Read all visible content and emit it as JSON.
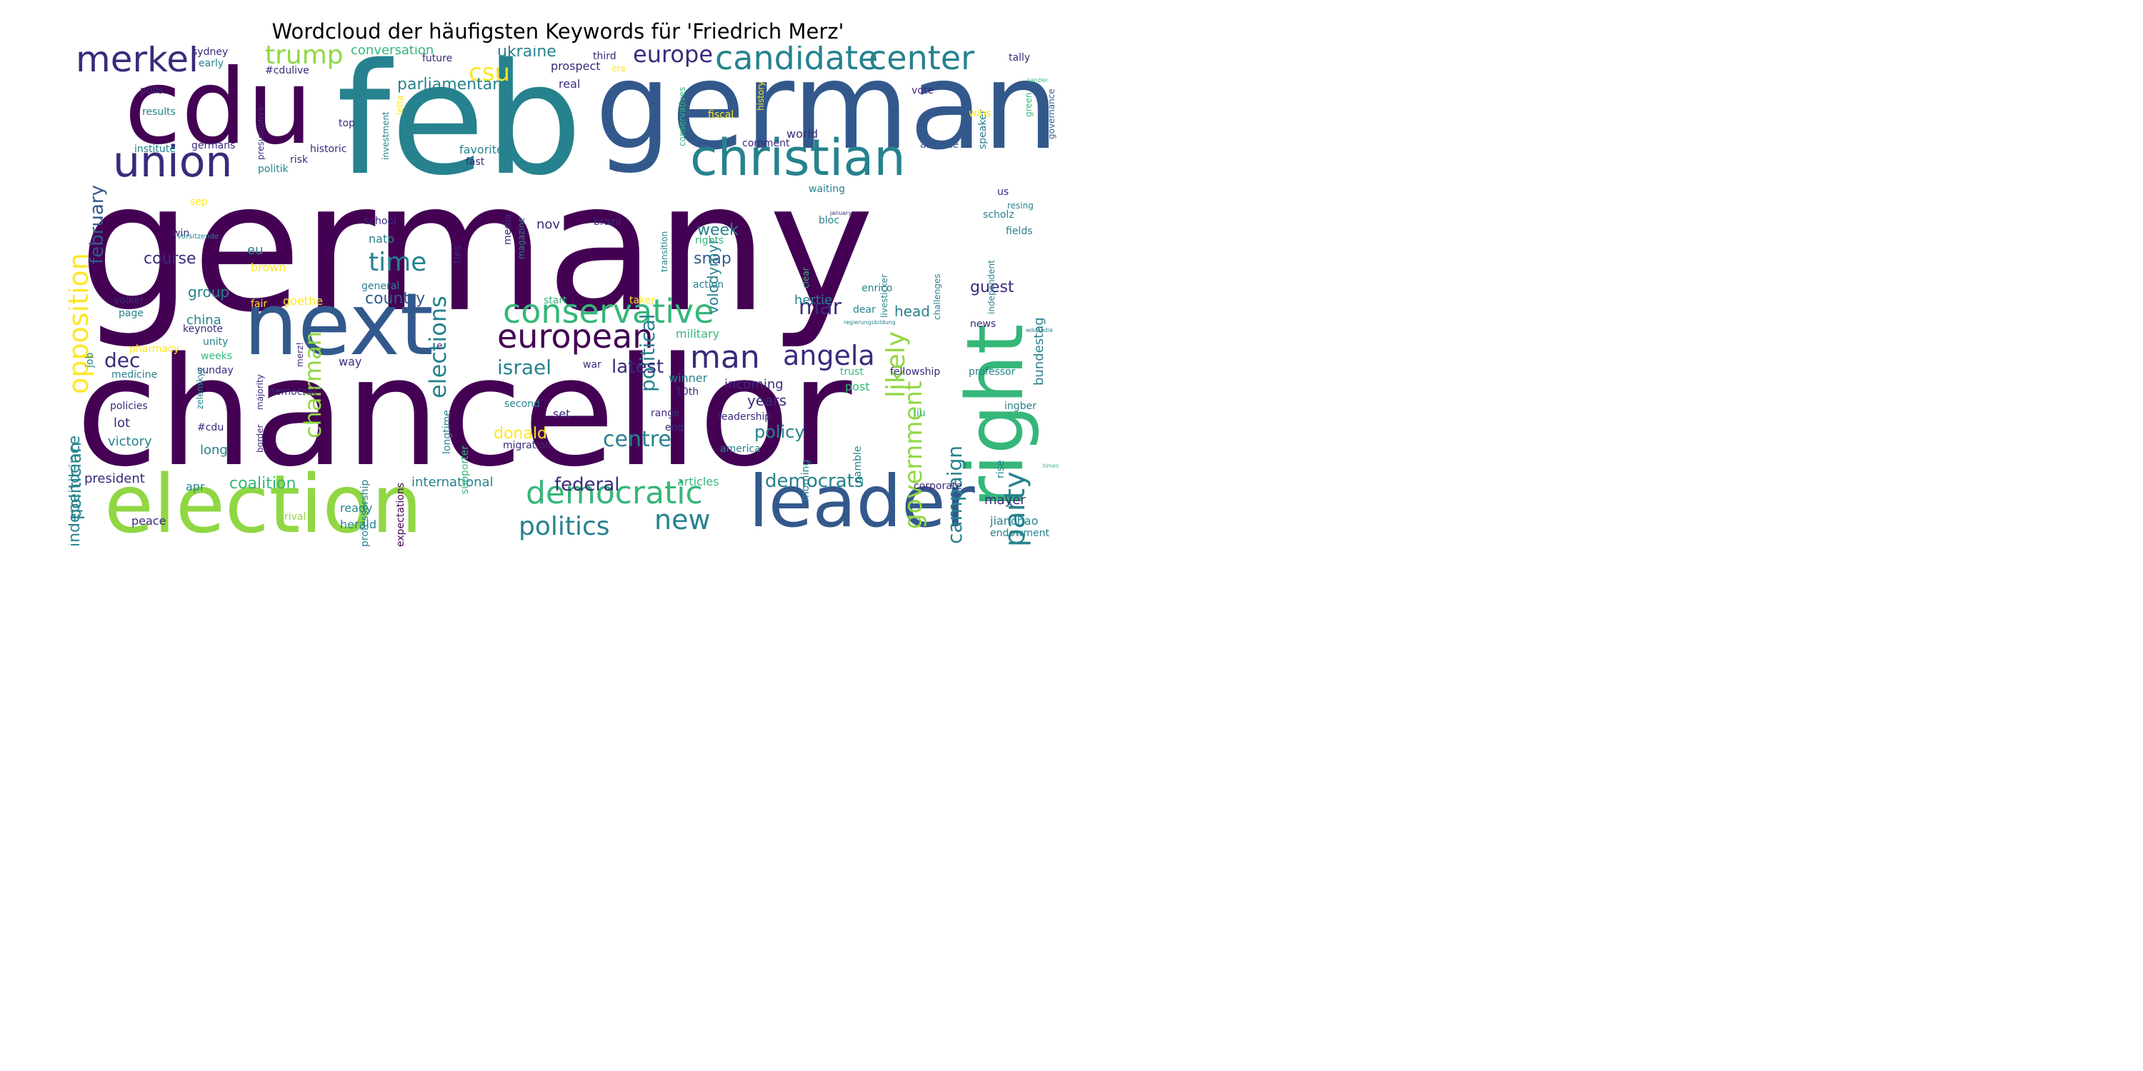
{
  "title": "Wordcloud der häufigsten Keywords für 'Friedrich Merz'",
  "chart_data": {
    "type": "wordcloud",
    "title": "Wordcloud der häufigsten Keywords für 'Friedrich Merz'",
    "words": [
      "germany",
      "feb",
      "chancellor",
      "german",
      "cdu",
      "next",
      "election",
      "leader",
      "christian",
      "right",
      "union",
      "merkel",
      "conservative",
      "candidate",
      "center",
      "european",
      "democratic",
      "party",
      "man",
      "angela",
      "opposition",
      "government",
      "likely",
      "chairman",
      "elections",
      "politics",
      "new",
      "europe",
      "csu",
      "trump",
      "time",
      "political",
      "campaign",
      "israel",
      "latest",
      "federal",
      "democrats",
      "politician",
      "independence",
      "february",
      "mar",
      "dec",
      "centre",
      "policy",
      "ukraine",
      "parliamentary",
      "conversation",
      "country",
      "course",
      "bundestag",
      "guest",
      "week",
      "snap",
      "eu",
      "years",
      "coalition",
      "donald",
      "volodymyr",
      "mayer",
      "head",
      "hertie",
      "incoming",
      "group",
      "brown",
      "goethe",
      "china",
      "lot",
      "victory",
      "long",
      "president",
      "apr",
      "international",
      "articles",
      "ready",
      "herald",
      "peace",
      "rival",
      "expectations",
      "professorship",
      "supporter",
      "longtime",
      "migration",
      "second",
      "set",
      "winner",
      "10th",
      "range",
      "end",
      "leadership",
      "america",
      "gamble",
      "morning",
      "post",
      "trust",
      "fellowship",
      "professor",
      "liu",
      "ingber",
      "jianchao",
      "endowment",
      "corporate",
      "rise",
      "news",
      "dear",
      "enrico",
      "livesticker",
      "challenges",
      "independent",
      "clear",
      "action",
      "rights",
      "transition",
      "nov",
      "brazil",
      "bloc",
      "scholz",
      "fields",
      "waiting",
      "resing",
      "us",
      "alliance",
      "governance",
      "green",
      "speaker",
      "wins",
      "fiscal",
      "history",
      "conservatives",
      "comment",
      "world",
      "vote",
      "tally",
      "third",
      "era",
      "prospect",
      "real",
      "future",
      "early",
      "sydney",
      "polls",
      "results",
      "institute",
      "germans",
      "historic",
      "risk",
      "presumptive",
      "#cdulive",
      "politik",
      "top",
      "investment",
      "letta",
      "favorite",
      "fast",
      "sep",
      "win",
      "school",
      "nato",
      "ties",
      "media",
      "magazine",
      "general",
      "volker",
      "page",
      "fair",
      "keynote",
      "unity",
      "weeks",
      "sunday",
      "pharmacy",
      "job",
      "medicine",
      "zelenskyy",
      "merz!",
      "way",
      "military",
      "start",
      "taker",
      "democrat",
      "border",
      "majority",
      "#cdu",
      "policies",
      "e",
      "war",
      "vorsitzende",
      "regierungsbildung",
      "january",
      "kanzler",
      "wikipedia",
      "times"
    ],
    "colormap": "viridis",
    "background": "#ffffff"
  },
  "colors": {
    "dark_purple": "#440154",
    "indigo": "#3b2a7b",
    "blue": "#33598c",
    "teal": "#26828e",
    "green": "#35b779",
    "lime": "#90d743",
    "yellow": "#fde725"
  }
}
